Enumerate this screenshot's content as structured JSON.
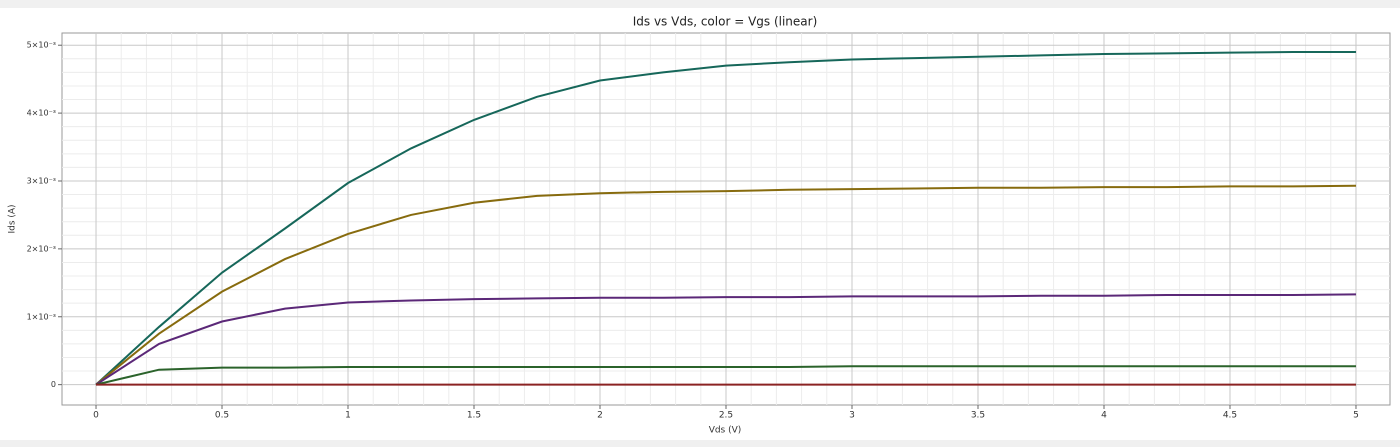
{
  "chart_data": {
    "type": "line",
    "title": "Ids vs Vds, color = Vgs (linear)",
    "x_label": "Vds (V)",
    "y_label": "Ids (A)",
    "x": [
      0,
      0.25,
      0.5,
      0.75,
      1,
      1.25,
      1.5,
      1.75,
      2,
      2.25,
      2.5,
      2.75,
      3,
      3.25,
      3.5,
      3.75,
      4,
      4.25,
      4.5,
      4.75,
      5
    ],
    "series": [
      {
        "color": "#16675a",
        "values": [
          0,
          0.00085,
          0.00165,
          0.0023,
          0.00297,
          0.00348,
          0.0039,
          0.00424,
          0.00448,
          0.0046,
          0.0047,
          0.00475,
          0.00479,
          0.00481,
          0.00483,
          0.00485,
          0.00487,
          0.00488,
          0.00489,
          0.0049,
          0.0049
        ]
      },
      {
        "color": "#876b0e",
        "values": [
          0,
          0.00075,
          0.00137,
          0.00185,
          0.00222,
          0.0025,
          0.00268,
          0.00278,
          0.00282,
          0.00284,
          0.00285,
          0.00287,
          0.00288,
          0.00289,
          0.0029,
          0.0029,
          0.00291,
          0.00291,
          0.00292,
          0.00292,
          0.00293
        ]
      },
      {
        "color": "#5b2878",
        "values": [
          0,
          0.0006,
          0.00093,
          0.00112,
          0.00121,
          0.00124,
          0.00126,
          0.00127,
          0.00128,
          0.00128,
          0.00129,
          0.00129,
          0.0013,
          0.0013,
          0.0013,
          0.00131,
          0.00131,
          0.00132,
          0.00132,
          0.00132,
          0.00133
        ]
      },
      {
        "color": "#2b632b",
        "values": [
          0,
          0.00022,
          0.00025,
          0.00025,
          0.00026,
          0.00026,
          0.00026,
          0.00026,
          0.00026,
          0.00026,
          0.00026,
          0.00026,
          0.00027,
          0.00027,
          0.00027,
          0.00027,
          0.00027,
          0.00027,
          0.00027,
          0.00027,
          0.00027
        ]
      },
      {
        "color": "#8b2323",
        "values": [
          0,
          0,
          0,
          0,
          0,
          0,
          0,
          0,
          0,
          0,
          0,
          0,
          0,
          0,
          0,
          0,
          0,
          0,
          0,
          0,
          0
        ]
      }
    ],
    "xlim": [
      -0.135,
      5.135
    ],
    "ylim": [
      -0.0003,
      0.00518
    ],
    "xticks": [
      0,
      0.5,
      1,
      1.5,
      2,
      2.5,
      3,
      3.5,
      4,
      4.5,
      5
    ],
    "yticks": [
      0,
      {
        "value": 0.001,
        "label": "1×10⁻³"
      },
      {
        "value": 0.002,
        "label": "2×10⁻³"
      },
      {
        "value": 0.003,
        "label": "3×10⁻³"
      },
      {
        "value": 0.004,
        "label": "4×10⁻³"
      },
      {
        "value": 0.005,
        "label": "5×10⁻³"
      }
    ],
    "grid": true
  }
}
